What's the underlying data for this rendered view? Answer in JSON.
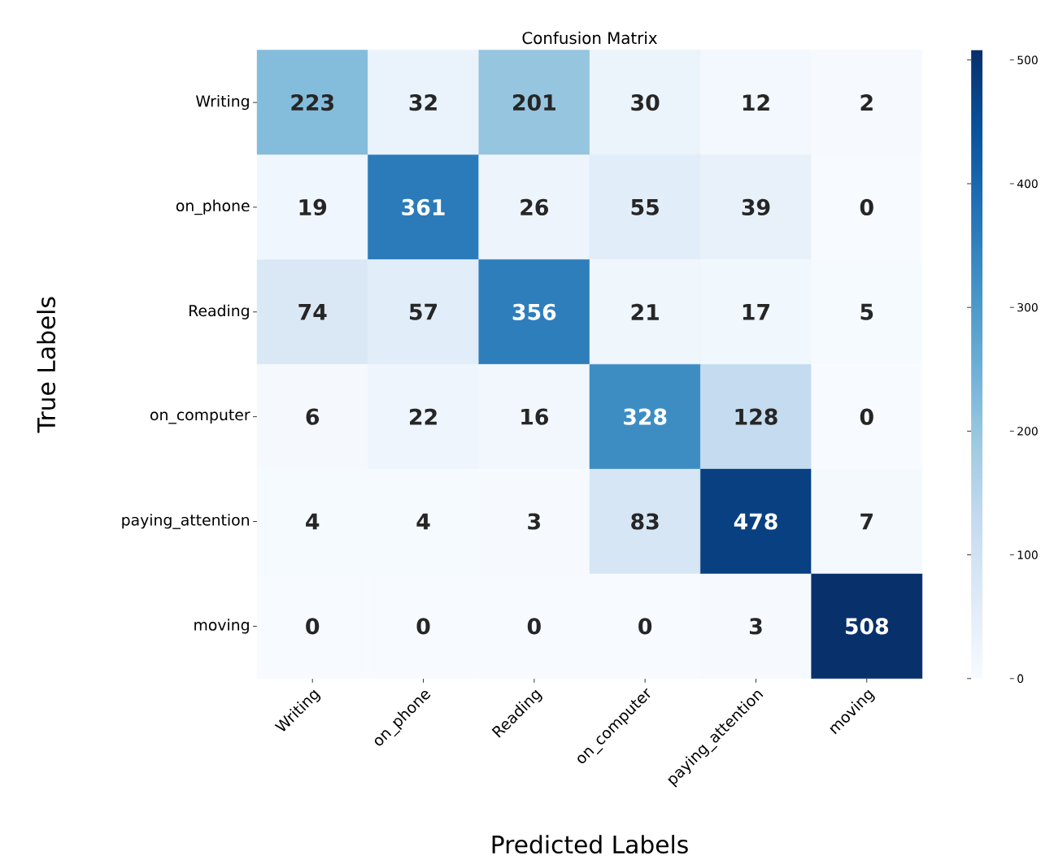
{
  "chart_data": {
    "type": "heatmap",
    "title": "Confusion Matrix",
    "xlabel": "Predicted Labels",
    "ylabel": "True Labels",
    "categories": [
      "Writing",
      "on_phone",
      "Reading",
      "on_computer",
      "paying_attention",
      "moving"
    ],
    "y_categories": [
      "Writing",
      "on_phone",
      "Reading",
      "on_computer",
      "paying_attention",
      "moving"
    ],
    "cells": [
      [
        223,
        32,
        201,
        30,
        12,
        2
      ],
      [
        19,
        361,
        26,
        55,
        39,
        0
      ],
      [
        74,
        57,
        356,
        21,
        17,
        5
      ],
      [
        6,
        22,
        16,
        328,
        128,
        0
      ],
      [
        4,
        4,
        3,
        83,
        478,
        7
      ],
      [
        0,
        0,
        0,
        0,
        3,
        508
      ]
    ],
    "clim": [
      0,
      508
    ],
    "cticks": [
      0,
      100,
      200,
      300,
      400,
      500
    ],
    "data_labels": true
  }
}
